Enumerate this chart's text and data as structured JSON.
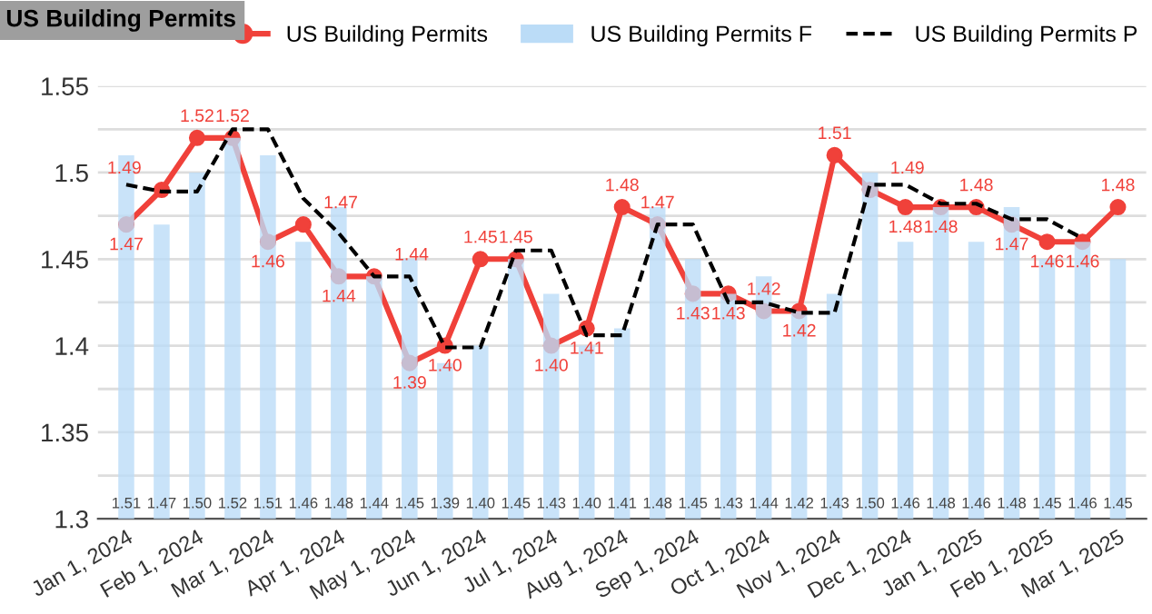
{
  "chart_data": {
    "type": "bar",
    "title": "US Building Permits",
    "categories": [
      "Jan 1, 2024",
      null,
      "Feb 1, 2024",
      null,
      "Mar 1, 2024",
      null,
      "Apr 1, 2024",
      null,
      "May 1, 2024",
      null,
      "Jun 1, 2024",
      null,
      "Jul 1, 2024",
      null,
      "Aug 1, 2024",
      null,
      "Sep 1, 2024",
      null,
      "Oct 1, 2024",
      null,
      "Nov 1, 2024",
      null,
      "Dec 1, 2024",
      null,
      "Jan 1, 2025",
      null,
      "Feb 1, 2025",
      null,
      "Mar 1, 2025"
    ],
    "series": [
      {
        "name": "US Building Permits F",
        "color": "#bbdcf7",
        "values": [
          1.51,
          1.47,
          1.5,
          1.52,
          1.51,
          1.46,
          1.48,
          1.44,
          1.45,
          1.39,
          1.4,
          1.45,
          1.43,
          1.4,
          1.41,
          1.48,
          1.45,
          1.43,
          1.44,
          1.42,
          1.43,
          1.5,
          1.46,
          1.48,
          1.46,
          1.48,
          1.45,
          1.46,
          1.45
        ],
        "value_labels": [
          "1.51",
          "1.47",
          "1.50",
          "1.52",
          "1.51",
          "1.46",
          "1.48",
          "1.44",
          "1.45",
          "1.39",
          "1.40",
          "1.45",
          "1.43",
          "1.40",
          "1.41",
          "1.48",
          "1.45",
          "1.43",
          "1.44",
          "1.42",
          "1.43",
          "1.50",
          "1.46",
          "1.48",
          "1.46",
          "1.48",
          "1.45",
          "1.46",
          "1.45"
        ]
      },
      {
        "name": "US Building Permits",
        "type": "line",
        "color": "#f0413a",
        "marker": "circle",
        "line_style": "solid",
        "values": [
          1.47,
          1.49,
          1.52,
          1.52,
          1.46,
          1.47,
          1.44,
          1.44,
          1.39,
          1.4,
          1.45,
          1.45,
          1.4,
          1.41,
          1.48,
          1.47,
          1.43,
          1.43,
          1.42,
          1.42,
          1.51,
          1.49,
          1.48,
          1.48,
          1.48,
          1.47,
          1.46,
          1.46,
          1.48
        ],
        "value_labels": [
          "1.47",
          "1.49",
          "1.52",
          "1.52",
          "1.46",
          "1.47",
          "1.44",
          "1.44",
          "1.39",
          "1.40",
          "1.45",
          "1.45",
          "1.40",
          "1.41",
          "1.48",
          "1.47",
          "1.43",
          "1.43",
          "1.42",
          "1.42",
          "1.51",
          "1.49",
          "1.48",
          "1.48",
          "1.48",
          "1.47",
          "1.46",
          "1.46",
          "1.48"
        ]
      },
      {
        "name": "US Building Permits P",
        "type": "line",
        "color": "#000000",
        "marker": "none",
        "line_style": "dashed",
        "values": [
          1.493,
          1.489,
          1.489,
          1.525,
          1.525,
          1.485,
          1.465,
          1.44,
          1.44,
          1.399,
          1.399,
          1.455,
          1.455,
          1.406,
          1.406,
          1.47,
          1.47,
          1.425,
          1.425,
          1.419,
          1.419,
          1.493,
          1.493,
          1.482,
          1.482,
          1.473,
          1.473,
          1.462,
          null
        ]
      }
    ],
    "ylim": [
      1.3,
      1.55
    ],
    "yticks": [
      1.3,
      {
        "value": 1.325,
        "label": null
      },
      1.35,
      {
        "value": 1.375,
        "label": null
      },
      1.4,
      {
        "value": 1.425,
        "label": null
      },
      1.45,
      {
        "value": 1.475,
        "label": null
      },
      1.5,
      {
        "value": 1.525,
        "label": null
      },
      1.55
    ],
    "grid": "y",
    "legend": "top"
  }
}
